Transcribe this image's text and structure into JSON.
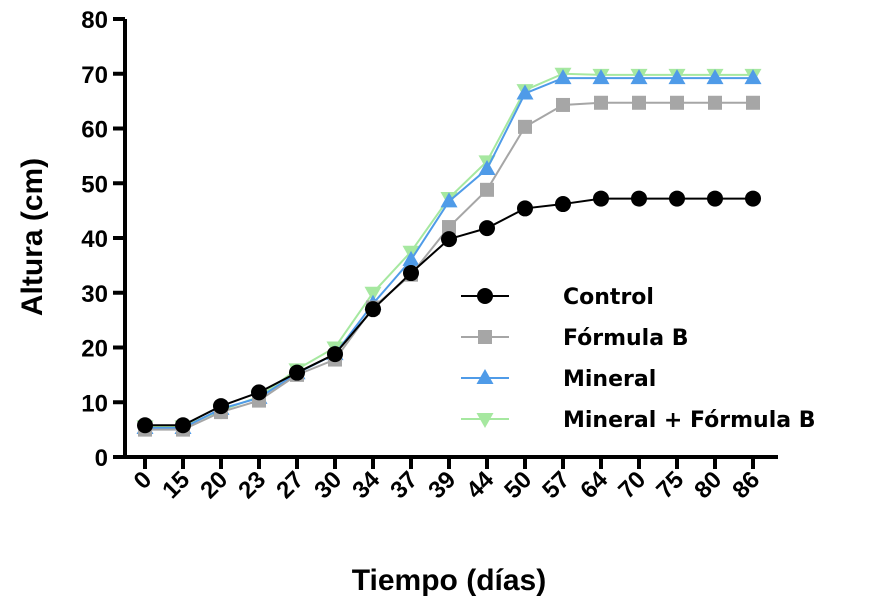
{
  "chart_data": {
    "type": "line",
    "title": "",
    "xlabel": "Tiempo (días)",
    "ylabel": "Altura (cm)",
    "categories": [
      "0",
      "15",
      "20",
      "23",
      "27",
      "30",
      "34",
      "37",
      "39",
      "44",
      "50",
      "57",
      "64",
      "70",
      "75",
      "80",
      "86"
    ],
    "ylim": [
      0,
      80
    ],
    "yticks": [
      0,
      10,
      20,
      30,
      40,
      50,
      60,
      70,
      80
    ],
    "grid": false,
    "legend_position": "center-right",
    "series": [
      {
        "name": "Control",
        "marker": "circle",
        "color": "#000000",
        "values": [
          5.8,
          5.8,
          9.3,
          11.8,
          15.4,
          18.8,
          27.0,
          33.6,
          39.8,
          41.8,
          45.4,
          46.2,
          47.2,
          47.2,
          47.2,
          47.2,
          47.2
        ]
      },
      {
        "name": "Fórmula B",
        "marker": "square",
        "color": "#a6a6a6",
        "values": [
          5.0,
          5.0,
          8.2,
          10.3,
          15.0,
          17.8,
          27.3,
          33.3,
          42.0,
          48.8,
          60.3,
          64.3,
          64.7,
          64.7,
          64.7,
          64.7,
          64.7
        ]
      },
      {
        "name": "Mineral",
        "marker": "triangle-up",
        "color": "#4f9be8",
        "values": [
          5.3,
          5.3,
          8.8,
          10.8,
          15.3,
          18.8,
          28.0,
          36.0,
          46.7,
          52.6,
          66.4,
          69.2,
          69.2,
          69.2,
          69.2,
          69.2,
          69.2
        ]
      },
      {
        "name": "Mineral + Fórmula B",
        "marker": "triangle-down",
        "color": "#a6e8a0",
        "values": [
          5.6,
          5.6,
          8.5,
          11.0,
          16.0,
          20.0,
          30.0,
          37.5,
          47.3,
          54.0,
          67.0,
          70.0,
          69.8,
          69.8,
          69.8,
          69.8,
          69.8
        ]
      }
    ]
  }
}
